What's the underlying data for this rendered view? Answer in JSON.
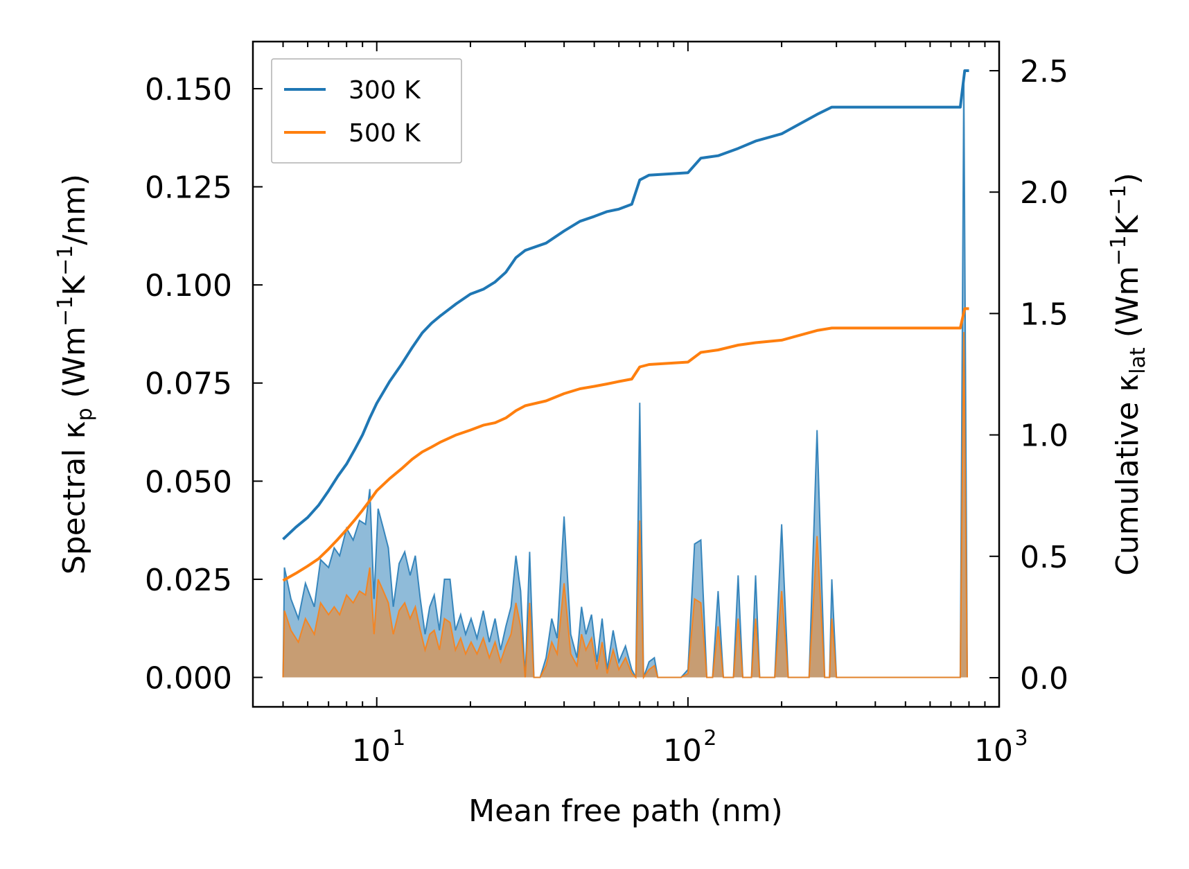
{
  "chart_data": {
    "type": "line",
    "xlabel": "Mean free path (nm)",
    "ylabel_left": "Spectral κp (Wm−1K−1/nm)",
    "ylabel_right": "Cumulative κlat (Wm−1K−1)",
    "x_scale": "log",
    "xlim": [
      4,
      1000
    ],
    "ylim_left": [
      -0.0075,
      0.162
    ],
    "ylim_right": [
      -0.12,
      2.62
    ],
    "x_ticks": [
      {
        "value": 10,
        "base": "10",
        "exp": "1"
      },
      {
        "value": 100,
        "base": "10",
        "exp": "2"
      },
      {
        "value": 1000,
        "base": "10",
        "exp": "3"
      }
    ],
    "y_ticks_left": [
      {
        "value": 0.0,
        "label": "0.000"
      },
      {
        "value": 0.025,
        "label": "0.025"
      },
      {
        "value": 0.05,
        "label": "0.050"
      },
      {
        "value": 0.075,
        "label": "0.075"
      },
      {
        "value": 0.1,
        "label": "0.100"
      },
      {
        "value": 0.125,
        "label": "0.125"
      },
      {
        "value": 0.15,
        "label": "0.150"
      }
    ],
    "y_ticks_right": [
      {
        "value": 0.0,
        "label": "0.0"
      },
      {
        "value": 0.5,
        "label": "0.5"
      },
      {
        "value": 1.0,
        "label": "1.0"
      },
      {
        "value": 1.5,
        "label": "1.5"
      },
      {
        "value": 2.0,
        "label": "2.0"
      },
      {
        "value": 2.5,
        "label": "2.5"
      }
    ],
    "legend": {
      "placement": "top-left"
    },
    "series": [
      {
        "name": "300 K",
        "color": "#1f77b4",
        "cumulative": [
          [
            5.0,
            0.57
          ],
          [
            5.5,
            0.62
          ],
          [
            6.0,
            0.66
          ],
          [
            6.5,
            0.71
          ],
          [
            7.0,
            0.77
          ],
          [
            7.5,
            0.83
          ],
          [
            8.0,
            0.88
          ],
          [
            8.5,
            0.94
          ],
          [
            9.0,
            1.0
          ],
          [
            9.5,
            1.07
          ],
          [
            10.0,
            1.13
          ],
          [
            11.0,
            1.22
          ],
          [
            12.0,
            1.29
          ],
          [
            13.0,
            1.36
          ],
          [
            14.0,
            1.42
          ],
          [
            15.0,
            1.46
          ],
          [
            16.0,
            1.49
          ],
          [
            18.0,
            1.54
          ],
          [
            20.0,
            1.58
          ],
          [
            22.0,
            1.6
          ],
          [
            24.0,
            1.63
          ],
          [
            26.0,
            1.67
          ],
          [
            28.0,
            1.73
          ],
          [
            30.0,
            1.76
          ],
          [
            35.0,
            1.79
          ],
          [
            40.0,
            1.84
          ],
          [
            45.0,
            1.88
          ],
          [
            50.0,
            1.9
          ],
          [
            55.0,
            1.92
          ],
          [
            60.0,
            1.93
          ],
          [
            66.0,
            1.95
          ],
          [
            70.0,
            2.05
          ],
          [
            75.0,
            2.07
          ],
          [
            100.0,
            2.08
          ],
          [
            110.0,
            2.14
          ],
          [
            125.0,
            2.15
          ],
          [
            145.0,
            2.18
          ],
          [
            165.0,
            2.21
          ],
          [
            200.0,
            2.24
          ],
          [
            260.0,
            2.32
          ],
          [
            290.0,
            2.35
          ],
          [
            750.0,
            2.35
          ],
          [
            775.0,
            2.5
          ],
          [
            800.0,
            2.5
          ]
        ],
        "spectral": [
          [
            5.0,
            0.0
          ],
          [
            5.05,
            0.028
          ],
          [
            5.3,
            0.02
          ],
          [
            5.6,
            0.015
          ],
          [
            5.9,
            0.024
          ],
          [
            6.3,
            0.018
          ],
          [
            6.6,
            0.03
          ],
          [
            7.0,
            0.028
          ],
          [
            7.3,
            0.033
          ],
          [
            7.6,
            0.031
          ],
          [
            8.0,
            0.038
          ],
          [
            8.4,
            0.035
          ],
          [
            8.8,
            0.04
          ],
          [
            9.2,
            0.039
          ],
          [
            9.5,
            0.048
          ],
          [
            9.8,
            0.02
          ],
          [
            10.1,
            0.043
          ],
          [
            10.5,
            0.038
          ],
          [
            10.9,
            0.033
          ],
          [
            11.3,
            0.018
          ],
          [
            11.8,
            0.029
          ],
          [
            12.3,
            0.032
          ],
          [
            12.8,
            0.026
          ],
          [
            13.3,
            0.031
          ],
          [
            13.8,
            0.02
          ],
          [
            14.3,
            0.011
          ],
          [
            14.8,
            0.018
          ],
          [
            15.3,
            0.021
          ],
          [
            15.9,
            0.012
          ],
          [
            16.5,
            0.025
          ],
          [
            17.2,
            0.025
          ],
          [
            17.9,
            0.012
          ],
          [
            18.6,
            0.016
          ],
          [
            19.3,
            0.011
          ],
          [
            20.1,
            0.015
          ],
          [
            21.0,
            0.01
          ],
          [
            22.0,
            0.017
          ],
          [
            23.0,
            0.009
          ],
          [
            24.0,
            0.015
          ],
          [
            25.0,
            0.007
          ],
          [
            26.0,
            0.013
          ],
          [
            27.0,
            0.018
          ],
          [
            28.0,
            0.031
          ],
          [
            29.0,
            0.022
          ],
          [
            30.0,
            0.0
          ],
          [
            31.0,
            0.032
          ],
          [
            32.0,
            0.0
          ],
          [
            33.5,
            0.0
          ],
          [
            35.0,
            0.005
          ],
          [
            36.5,
            0.015
          ],
          [
            38.0,
            0.01
          ],
          [
            40.0,
            0.041
          ],
          [
            42.0,
            0.011
          ],
          [
            44.0,
            0.005
          ],
          [
            45.5,
            0.018
          ],
          [
            47.0,
            0.011
          ],
          [
            49.0,
            0.016
          ],
          [
            51.0,
            0.004
          ],
          [
            53.0,
            0.015
          ],
          [
            55.0,
            0.002
          ],
          [
            57.5,
            0.012
          ],
          [
            60.0,
            0.004
          ],
          [
            63.0,
            0.008
          ],
          [
            66.0,
            0.002
          ],
          [
            68.0,
            0.0
          ],
          [
            70.0,
            0.07
          ],
          [
            72.0,
            0.0
          ],
          [
            75.0,
            0.004
          ],
          [
            78.0,
            0.005
          ],
          [
            80.0,
            0.0
          ],
          [
            95.0,
            0.0
          ],
          [
            100.0,
            0.002
          ],
          [
            105.0,
            0.034
          ],
          [
            110.0,
            0.035
          ],
          [
            115.0,
            0.0
          ],
          [
            120.0,
            0.0
          ],
          [
            125.0,
            0.022
          ],
          [
            130.0,
            0.0
          ],
          [
            140.0,
            0.0
          ],
          [
            145.0,
            0.026
          ],
          [
            150.0,
            0.0
          ],
          [
            160.0,
            0.0
          ],
          [
            165.0,
            0.026
          ],
          [
            170.0,
            0.0
          ],
          [
            190.0,
            0.0
          ],
          [
            200.0,
            0.039
          ],
          [
            210.0,
            0.0
          ],
          [
            245.0,
            0.0
          ],
          [
            260.0,
            0.063
          ],
          [
            275.0,
            0.0
          ],
          [
            285.0,
            0.0
          ],
          [
            290.0,
            0.025
          ],
          [
            300.0,
            0.0
          ],
          [
            750.0,
            0.0
          ],
          [
            770.0,
            0.153
          ],
          [
            790.0,
            0.0
          ]
        ]
      },
      {
        "name": "500 K",
        "color": "#ff7f0e",
        "cumulative": [
          [
            5.0,
            0.4
          ],
          [
            5.5,
            0.43
          ],
          [
            6.0,
            0.46
          ],
          [
            6.5,
            0.49
          ],
          [
            7.0,
            0.53
          ],
          [
            7.5,
            0.57
          ],
          [
            8.0,
            0.61
          ],
          [
            8.5,
            0.65
          ],
          [
            9.0,
            0.69
          ],
          [
            9.5,
            0.73
          ],
          [
            10.0,
            0.77
          ],
          [
            11.0,
            0.82
          ],
          [
            12.0,
            0.86
          ],
          [
            13.0,
            0.9
          ],
          [
            14.0,
            0.93
          ],
          [
            15.0,
            0.95
          ],
          [
            16.0,
            0.97
          ],
          [
            18.0,
            1.0
          ],
          [
            20.0,
            1.02
          ],
          [
            22.0,
            1.04
          ],
          [
            24.0,
            1.05
          ],
          [
            26.0,
            1.07
          ],
          [
            28.0,
            1.1
          ],
          [
            30.0,
            1.12
          ],
          [
            35.0,
            1.14
          ],
          [
            40.0,
            1.17
          ],
          [
            45.0,
            1.19
          ],
          [
            50.0,
            1.2
          ],
          [
            55.0,
            1.21
          ],
          [
            60.0,
            1.22
          ],
          [
            66.0,
            1.23
          ],
          [
            70.0,
            1.28
          ],
          [
            75.0,
            1.29
          ],
          [
            100.0,
            1.3
          ],
          [
            110.0,
            1.34
          ],
          [
            125.0,
            1.35
          ],
          [
            145.0,
            1.37
          ],
          [
            165.0,
            1.38
          ],
          [
            200.0,
            1.39
          ],
          [
            260.0,
            1.43
          ],
          [
            290.0,
            1.44
          ],
          [
            750.0,
            1.44
          ],
          [
            775.0,
            1.52
          ],
          [
            800.0,
            1.52
          ]
        ],
        "spectral": [
          [
            5.0,
            0.0
          ],
          [
            5.05,
            0.017
          ],
          [
            5.3,
            0.012
          ],
          [
            5.6,
            0.009
          ],
          [
            5.9,
            0.015
          ],
          [
            6.3,
            0.011
          ],
          [
            6.6,
            0.019
          ],
          [
            7.0,
            0.016
          ],
          [
            7.3,
            0.018
          ],
          [
            7.6,
            0.016
          ],
          [
            8.0,
            0.021
          ],
          [
            8.4,
            0.019
          ],
          [
            8.8,
            0.022
          ],
          [
            9.2,
            0.021
          ],
          [
            9.5,
            0.028
          ],
          [
            9.8,
            0.011
          ],
          [
            10.1,
            0.025
          ],
          [
            10.5,
            0.022
          ],
          [
            10.9,
            0.019
          ],
          [
            11.3,
            0.011
          ],
          [
            11.8,
            0.017
          ],
          [
            12.3,
            0.019
          ],
          [
            12.8,
            0.015
          ],
          [
            13.3,
            0.018
          ],
          [
            13.8,
            0.012
          ],
          [
            14.3,
            0.007
          ],
          [
            14.8,
            0.011
          ],
          [
            15.3,
            0.012
          ],
          [
            15.9,
            0.007
          ],
          [
            16.5,
            0.015
          ],
          [
            17.2,
            0.014
          ],
          [
            17.9,
            0.007
          ],
          [
            18.6,
            0.01
          ],
          [
            19.3,
            0.006
          ],
          [
            20.1,
            0.009
          ],
          [
            21.0,
            0.006
          ],
          [
            22.0,
            0.01
          ],
          [
            23.0,
            0.005
          ],
          [
            24.0,
            0.009
          ],
          [
            25.0,
            0.004
          ],
          [
            26.0,
            0.008
          ],
          [
            27.0,
            0.011
          ],
          [
            28.0,
            0.019
          ],
          [
            29.0,
            0.013
          ],
          [
            30.0,
            0.0
          ],
          [
            31.0,
            0.019
          ],
          [
            32.0,
            0.0
          ],
          [
            33.5,
            0.0
          ],
          [
            35.0,
            0.003
          ],
          [
            36.5,
            0.009
          ],
          [
            38.0,
            0.006
          ],
          [
            40.0,
            0.024
          ],
          [
            42.0,
            0.006
          ],
          [
            44.0,
            0.003
          ],
          [
            45.5,
            0.011
          ],
          [
            47.0,
            0.007
          ],
          [
            49.0,
            0.01
          ],
          [
            51.0,
            0.002
          ],
          [
            53.0,
            0.009
          ],
          [
            55.0,
            0.001
          ],
          [
            57.5,
            0.007
          ],
          [
            60.0,
            0.002
          ],
          [
            63.0,
            0.005
          ],
          [
            66.0,
            0.001
          ],
          [
            68.0,
            0.0
          ],
          [
            70.0,
            0.04
          ],
          [
            72.0,
            0.0
          ],
          [
            75.0,
            0.002
          ],
          [
            78.0,
            0.003
          ],
          [
            80.0,
            0.0
          ],
          [
            95.0,
            0.0
          ],
          [
            100.0,
            0.001
          ],
          [
            105.0,
            0.02
          ],
          [
            110.0,
            0.019
          ],
          [
            115.0,
            0.0
          ],
          [
            120.0,
            0.0
          ],
          [
            125.0,
            0.013
          ],
          [
            130.0,
            0.0
          ],
          [
            140.0,
            0.0
          ],
          [
            145.0,
            0.015
          ],
          [
            150.0,
            0.0
          ],
          [
            160.0,
            0.0
          ],
          [
            165.0,
            0.015
          ],
          [
            170.0,
            0.0
          ],
          [
            190.0,
            0.0
          ],
          [
            200.0,
            0.022
          ],
          [
            210.0,
            0.0
          ],
          [
            245.0,
            0.0
          ],
          [
            260.0,
            0.036
          ],
          [
            275.0,
            0.0
          ],
          [
            285.0,
            0.0
          ],
          [
            290.0,
            0.015
          ],
          [
            300.0,
            0.0
          ],
          [
            750.0,
            0.0
          ],
          [
            770.0,
            0.088
          ],
          [
            790.0,
            0.0
          ]
        ]
      }
    ]
  }
}
